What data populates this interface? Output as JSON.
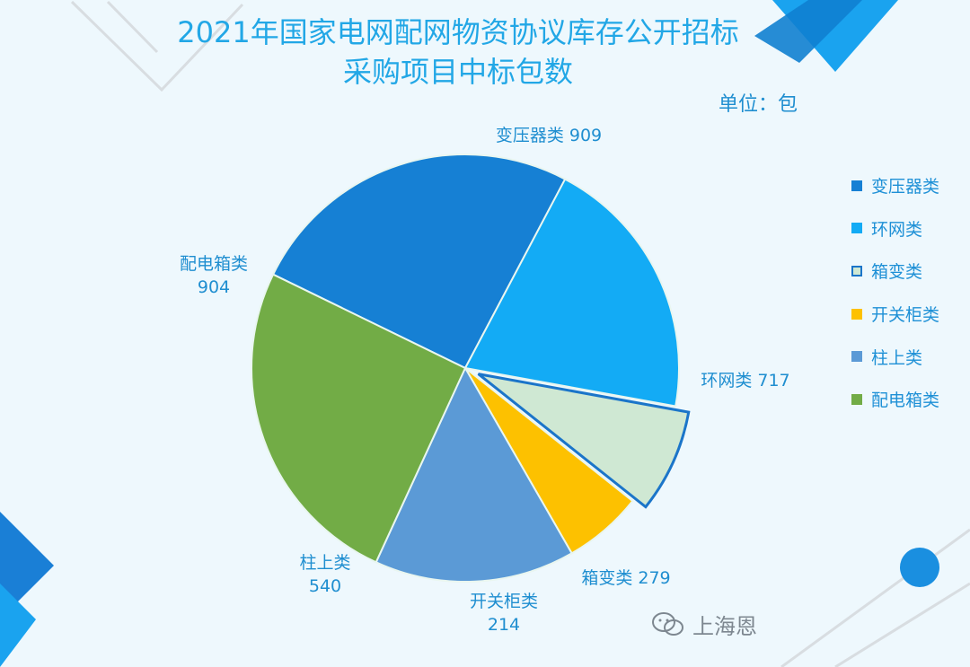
{
  "header": {
    "title_line1": "2021年国家电网配网物资协议库存公开招标",
    "title_line2": "采购项目中标包数",
    "unit": "单位：包"
  },
  "chart_data": {
    "type": "pie",
    "title": "2021年国家电网配网物资协议库存公开招标采购项目中标包数",
    "unit": "单位：包",
    "legend_position": "right",
    "slices": [
      {
        "name": "变压器类",
        "value": 909,
        "color": "#1680d4"
      },
      {
        "name": "环网类",
        "value": 717,
        "color": "#13abf5"
      },
      {
        "name": "箱变类",
        "value": 279,
        "color": "#cfe8d3",
        "exploded": true
      },
      {
        "name": "开关柜类",
        "value": 214,
        "color": "#fdc100"
      },
      {
        "name": "柱上类",
        "value": 540,
        "color": "#5b9ad6"
      },
      {
        "name": "配电箱类",
        "value": 904,
        "color": "#72ac46"
      }
    ]
  },
  "watermark": {
    "text": "上海恩",
    "icon": "wechat-icon"
  }
}
